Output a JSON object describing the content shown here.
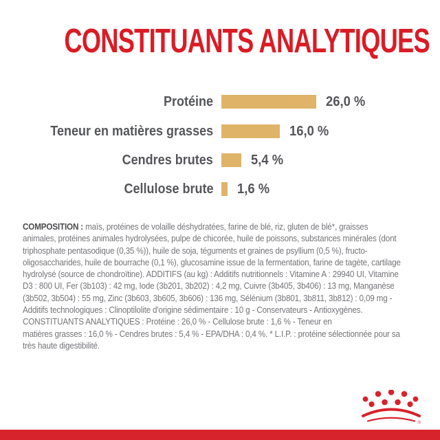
{
  "title": "CONSTITUANTS ANALYTIQUES",
  "colors": {
    "brand_red": "#da1c25",
    "bar_gold": "#dfb468",
    "chart_text_gray": "#55565a",
    "body_text_gray": "#747579"
  },
  "chart_data": {
    "type": "bar",
    "orientation": "horizontal",
    "categories": [
      "Protéine",
      "Teneur en matières grasses",
      "Cendres brutes",
      "Cellulose brute"
    ],
    "values": [
      26.0,
      16.0,
      5.4,
      1.6
    ],
    "value_labels": [
      "26,0 %",
      "16,0 %",
      "5,4 %",
      "1,6 %"
    ],
    "unit": "%",
    "xlim": [
      0,
      30
    ],
    "grid": false,
    "legend": false
  },
  "composition": {
    "heading": "COMPOSITION :",
    "line1_rest": "maïs, protéines de volaille déshydratées, farine de blé, riz, gluten de blé*, graisses",
    "lines": [
      "animales, protéines animales hydrolysées, pulpe de chicorée, huile de poissons, substances minérales (dont",
      "triphosphate pentasodique (0,35 %)), huile de soja, téguments et graines de psyllium (0,5 %), fructo-",
      "oligosaccharides, huile de bourrache (0,1 %), glucosamine issue de la fermentation, farine de tagète, cartilage",
      "hydrolysé (source de chondroïtine). ADDITIFS (au kg) : Additifs nutritionnels : Vitamine A : 29940 UI, Vitamine",
      "D3 : 800 UI, Fer (3b103) : 42 mg, Iode (3b201, 3b202) : 4,2 mg, Cuivre (3b405, 3b406) : 13 mg, Manganèse",
      "(3b502, 3b504) : 55 mg, Zinc (3b603, 3b605, 3b606) : 136 mg, Sélénium (3b801, 3b811, 3b812) : 0,09 mg -",
      "Additifs technologiques : Clinoptilolite d'origine sédimentaire : 10 g - Conservateurs - Antioxygènes.",
      "CONSTITUANTS ANALYTIQUES : Protéine : 26,0 % - Cellulose brute : 1,6 % - Teneur en",
      "matières grasses : 16,0 % - Cendres brutes : 5,4 % - EPA/DHA : 0,4 %. * L.I.P. : protéine sélectionnée pour sa",
      "très haute digestibilité."
    ]
  },
  "footer": {
    "logo": "royal-canin-crown",
    "registered_mark": "®"
  }
}
